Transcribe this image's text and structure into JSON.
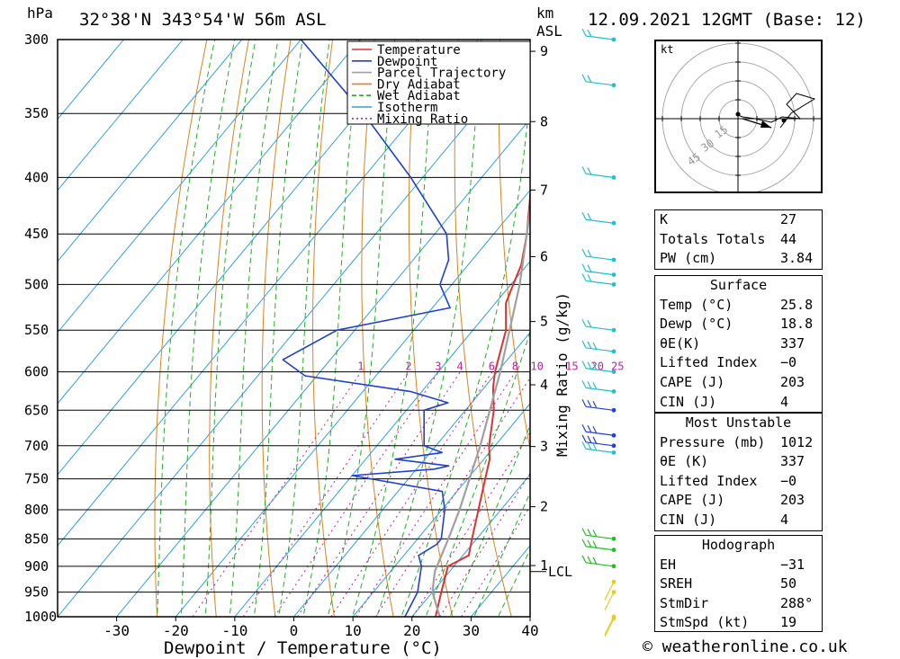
{
  "header": {
    "pressure_unit": "hPa",
    "location": "32°38'N  343°54'W  56m  ASL",
    "height_unit": "km",
    "height_ref": "ASL",
    "datetime": "12.09.2021  12GMT  (Base: 12)"
  },
  "chart_data": {
    "type": "line",
    "title": "32°38'N  343°54'W  56m  ASL",
    "xlabel": "Dewpoint / Temperature (°C)",
    "ylabel": "hPa",
    "ylabel_right": "Mixing Ratio (g/kg)",
    "xlim": [
      -40,
      40
    ],
    "ylim": [
      1000,
      300
    ],
    "x_ticks": [
      "-30",
      "-20",
      "-10",
      "0",
      "10",
      "20",
      "30",
      "40"
    ],
    "pressure_levels": [
      300,
      350,
      400,
      450,
      500,
      550,
      600,
      650,
      700,
      750,
      800,
      850,
      900,
      950,
      1000
    ],
    "height_ticks": [
      {
        "label": "9",
        "km": 9
      },
      {
        "label": "8",
        "km": 8
      },
      {
        "label": "7",
        "km": 7
      },
      {
        "label": "6",
        "km": 6
      },
      {
        "label": "5",
        "km": 5
      },
      {
        "label": "4",
        "km": 4
      },
      {
        "label": "3",
        "km": 3
      },
      {
        "label": "2",
        "km": 2
      },
      {
        "label": "1",
        "km": 1
      }
    ],
    "lcl_label": "LCL",
    "lcl_pressure": 910,
    "mixing_ratio_labels": [
      "1",
      "2",
      "3",
      "4",
      "6",
      "8",
      "10",
      "15",
      "20",
      "25"
    ],
    "legend": [
      "Temperature",
      "Dewpoint",
      "Parcel Trajectory",
      "Dry Adiabat",
      "Wet Adiabat",
      "Isotherm",
      "Mixing Ratio"
    ],
    "legend_position": "top-right",
    "colors": {
      "temperature": "#e03030",
      "dewpoint": "#2040d0",
      "parcel": "#a0a0a0",
      "dry_adiabat": "#e08020",
      "wet_adiabat": "#20b020",
      "isotherm": "#30a0e0",
      "mixing_ratio": "#c020a0"
    },
    "series": [
      {
        "name": "Temperature",
        "points": [
          [
            1012,
            25.8
          ],
          [
            1000,
            24.0
          ],
          [
            950,
            21.5
          ],
          [
            900,
            19.0
          ],
          [
            880,
            21.0
          ],
          [
            850,
            19.2
          ],
          [
            800,
            16.2
          ],
          [
            750,
            13.0
          ],
          [
            720,
            11.0
          ],
          [
            700,
            9.0
          ],
          [
            650,
            4.8
          ],
          [
            620,
            1.5
          ],
          [
            600,
            -0.4
          ],
          [
            550,
            -4.4
          ],
          [
            520,
            -8.2
          ],
          [
            500,
            -9.6
          ],
          [
            480,
            -11.0
          ],
          [
            450,
            -14.4
          ],
          [
            400,
            -21.5
          ],
          [
            350,
            -30.0
          ],
          [
            300,
            -40.0
          ]
        ]
      },
      {
        "name": "Dewpoint",
        "points": [
          [
            1012,
            18.8
          ],
          [
            1000,
            18.8
          ],
          [
            950,
            17.5
          ],
          [
            900,
            14.5
          ],
          [
            880,
            12.5
          ],
          [
            860,
            14.0
          ],
          [
            850,
            14.0
          ],
          [
            800,
            10.5
          ],
          [
            770,
            7.5
          ],
          [
            745,
            -10.0
          ],
          [
            735,
            3.0
          ],
          [
            730,
            5.0
          ],
          [
            720,
            -5.0
          ],
          [
            710,
            2.0
          ],
          [
            700,
            -2.0
          ],
          [
            650,
            -7.0
          ],
          [
            640,
            -4.0
          ],
          [
            625,
            -12.0
          ],
          [
            605,
            -32.0
          ],
          [
            585,
            -38.0
          ],
          [
            550,
            -33.0
          ],
          [
            525,
            -17.0
          ],
          [
            500,
            -22.0
          ],
          [
            475,
            -24.0
          ],
          [
            450,
            -28.0
          ],
          [
            400,
            -42.0
          ],
          [
            350,
            -59.0
          ],
          [
            300,
            -80.0
          ]
        ]
      },
      {
        "name": "Parcel Trajectory",
        "points": [
          [
            1012,
            25.8
          ],
          [
            950,
            20.0
          ],
          [
            910,
            17.5
          ],
          [
            850,
            15.2
          ],
          [
            800,
            13.0
          ],
          [
            700,
            7.5
          ],
          [
            600,
            0.5
          ],
          [
            500,
            -8.5
          ],
          [
            400,
            -21.0
          ],
          [
            300,
            -38.0
          ]
        ]
      }
    ]
  },
  "hodograph": {
    "unit": "kt",
    "ring_labels": [
      "15",
      "30",
      "45"
    ]
  },
  "indices": {
    "rows": [
      {
        "label": "K",
        "value": "27"
      },
      {
        "label": "Totals Totals",
        "value": "44"
      },
      {
        "label": "PW (cm)",
        "value": "3.84"
      }
    ]
  },
  "surface": {
    "title": "Surface",
    "temp_label": "Temp (°C)",
    "temp": "25.8",
    "dewp_label": "Dewp (°C)",
    "dewp": "18.8",
    "theta_label": "θE(K)",
    "theta": "337",
    "li_label": "Lifted Index",
    "li": "−0",
    "cape_label": "CAPE (J)",
    "cape": "203",
    "cin_label": "CIN (J)",
    "cin": "4"
  },
  "most_unstable": {
    "title": "Most Unstable",
    "pressure_label": "Pressure (mb)",
    "pressure": "1012",
    "theta_label": "θE (K)",
    "theta": "337",
    "li_label": "Lifted Index",
    "li": "−0",
    "cape_label": "CAPE (J)",
    "cape": "203",
    "cin_label": "CIN (J)",
    "cin": "4"
  },
  "hodo_params": {
    "title": "Hodograph",
    "eh_label": "EH",
    "eh": "−31",
    "sreh_label": "SREH",
    "sreh": "50",
    "stmdir_label": "StmDir",
    "stmdir": "288°",
    "stmspd_label": "StmSpd (kt)",
    "stmspd": "19"
  },
  "footer": "© weatheronline.co.uk"
}
